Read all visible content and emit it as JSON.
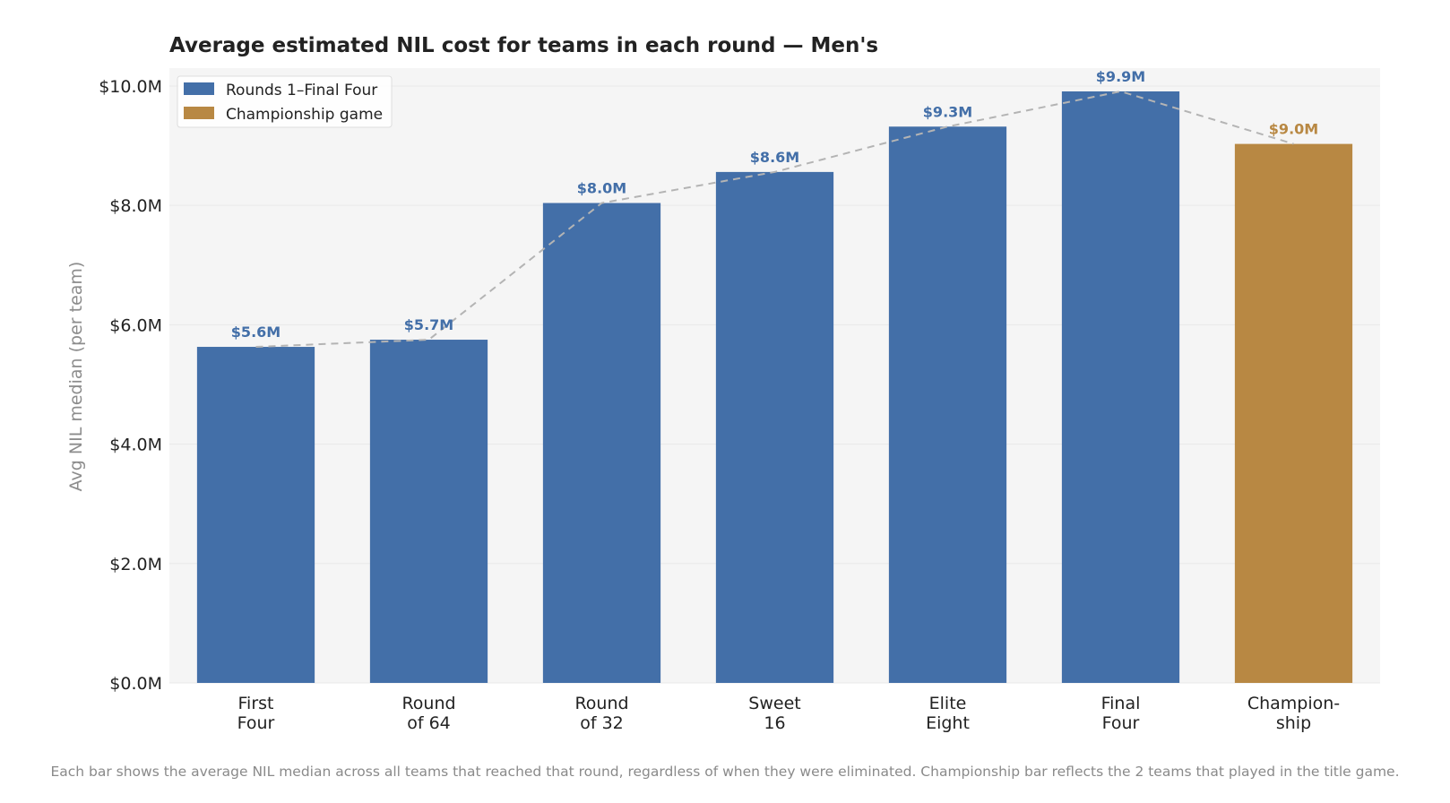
{
  "chart_data": {
    "type": "bar",
    "title": "Average estimated NIL cost for teams in each round — Men's",
    "xlabel": "",
    "ylabel": "Avg NIL median (per team)",
    "ylim": [
      0,
      10.3
    ],
    "y_ticks": [
      0,
      2,
      4,
      6,
      8,
      10
    ],
    "y_tick_labels": [
      "$0.0M",
      "$2.0M",
      "$4.0M",
      "$6.0M",
      "$8.0M",
      "$10.0M"
    ],
    "categories": [
      [
        "First",
        "Four"
      ],
      [
        "Round",
        "of 64"
      ],
      [
        "Round",
        "of 32"
      ],
      [
        "Sweet",
        "16"
      ],
      [
        "Elite",
        "Eight"
      ],
      [
        "Final",
        "Four"
      ],
      [
        "Champion-",
        "ship"
      ]
    ],
    "values": [
      5.63,
      5.75,
      8.04,
      8.56,
      9.32,
      9.91,
      9.03
    ],
    "value_labels": [
      "$5.6M",
      "$5.7M",
      "$8.0M",
      "$8.6M",
      "$9.3M",
      "$9.9M",
      "$9.0M"
    ],
    "series_membership": [
      0,
      0,
      0,
      0,
      0,
      0,
      1
    ],
    "series": [
      {
        "name": "Rounds 1–Final Four",
        "color": "#436fa8"
      },
      {
        "name": "Championship game",
        "color": "#b88843"
      }
    ],
    "trend_line": {
      "style": "dashed",
      "color": "#b4b4b4"
    },
    "grid": true,
    "legend_position": "top-left",
    "background_color": "#f5f5f5"
  },
  "footnote": "Each bar shows the average NIL median across all teams that reached that round, regardless of when they were eliminated. Championship bar reflects the 2 teams that played in the title game."
}
